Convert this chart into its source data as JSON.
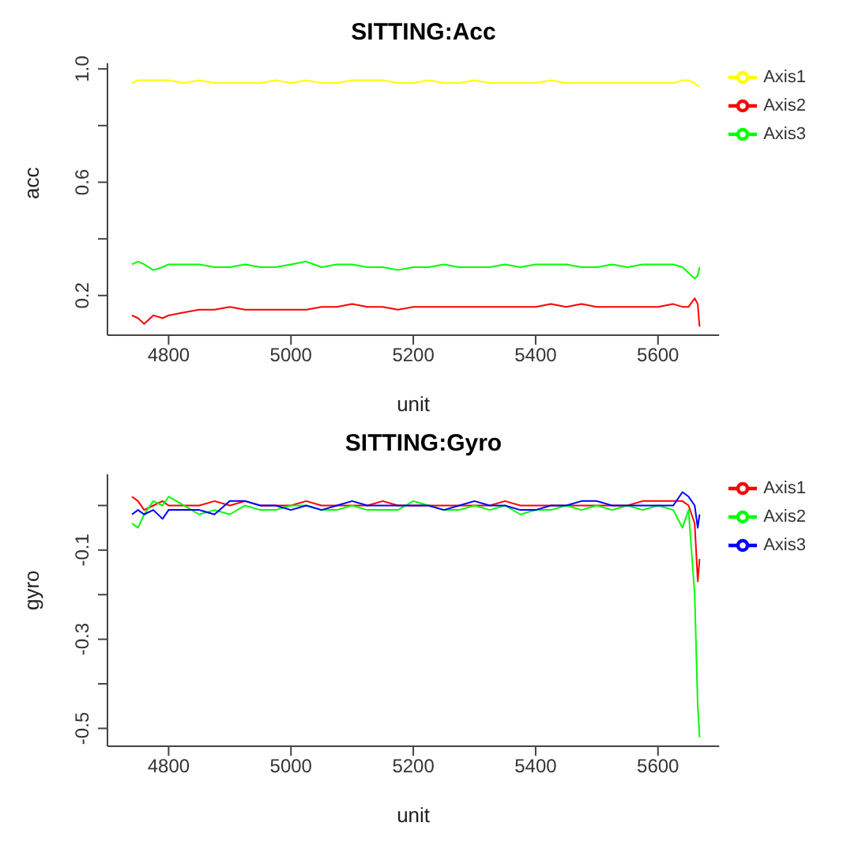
{
  "chart_data": [
    {
      "type": "line",
      "title": "SITTING:Acc",
      "xlabel": "unit",
      "ylabel": "acc",
      "x": [
        4740,
        4750,
        4760,
        4775,
        4790,
        4800,
        4825,
        4850,
        4875,
        4900,
        4925,
        4950,
        4975,
        5000,
        5025,
        5050,
        5075,
        5100,
        5125,
        5150,
        5175,
        5200,
        5225,
        5250,
        5275,
        5300,
        5325,
        5350,
        5375,
        5400,
        5425,
        5450,
        5475,
        5500,
        5525,
        5550,
        5575,
        5600,
        5625,
        5640,
        5650,
        5660,
        5665,
        5668
      ],
      "series": [
        {
          "name": "Axis1",
          "color": "#ffff00",
          "values": [
            0.95,
            0.96,
            0.96,
            0.96,
            0.96,
            0.96,
            0.95,
            0.96,
            0.95,
            0.95,
            0.95,
            0.95,
            0.96,
            0.95,
            0.96,
            0.95,
            0.95,
            0.96,
            0.96,
            0.96,
            0.95,
            0.95,
            0.96,
            0.95,
            0.95,
            0.96,
            0.95,
            0.95,
            0.95,
            0.95,
            0.96,
            0.95,
            0.95,
            0.95,
            0.95,
            0.95,
            0.95,
            0.95,
            0.95,
            0.96,
            0.96,
            0.95,
            0.94,
            0.94
          ]
        },
        {
          "name": "Axis2",
          "color": "#ff0000",
          "values": [
            0.13,
            0.12,
            0.1,
            0.13,
            0.12,
            0.13,
            0.14,
            0.15,
            0.15,
            0.16,
            0.15,
            0.15,
            0.15,
            0.15,
            0.15,
            0.16,
            0.16,
            0.17,
            0.16,
            0.16,
            0.15,
            0.16,
            0.16,
            0.16,
            0.16,
            0.16,
            0.16,
            0.16,
            0.16,
            0.16,
            0.17,
            0.16,
            0.17,
            0.16,
            0.16,
            0.16,
            0.16,
            0.16,
            0.17,
            0.16,
            0.16,
            0.19,
            0.17,
            0.09
          ]
        },
        {
          "name": "Axis3",
          "color": "#00ff00",
          "values": [
            0.31,
            0.32,
            0.31,
            0.29,
            0.3,
            0.31,
            0.31,
            0.31,
            0.3,
            0.3,
            0.31,
            0.3,
            0.3,
            0.31,
            0.32,
            0.3,
            0.31,
            0.31,
            0.3,
            0.3,
            0.29,
            0.3,
            0.3,
            0.31,
            0.3,
            0.3,
            0.3,
            0.31,
            0.3,
            0.31,
            0.31,
            0.31,
            0.3,
            0.3,
            0.31,
            0.3,
            0.31,
            0.31,
            0.31,
            0.3,
            0.28,
            0.26,
            0.27,
            0.3
          ]
        }
      ],
      "xlim": [
        4700,
        5700
      ],
      "xticks": [
        4800,
        5000,
        5200,
        5400,
        5600
      ],
      "ylim": [
        0.06,
        1.02
      ],
      "yticks": [
        0.2,
        {
          "value": 0.4,
          "label": null
        },
        0.6,
        {
          "value": 0.8,
          "label": null
        },
        {
          "value": 1.0,
          "label": "1.0"
        }
      ],
      "legend": "right",
      "marker": "none",
      "line_style": "solid"
    },
    {
      "type": "line",
      "title": "SITTING:Gyro",
      "xlabel": "unit",
      "ylabel": "gyro",
      "x": [
        4740,
        4750,
        4760,
        4775,
        4790,
        4800,
        4825,
        4850,
        4875,
        4900,
        4925,
        4950,
        4975,
        5000,
        5025,
        5050,
        5075,
        5100,
        5125,
        5150,
        5175,
        5200,
        5225,
        5250,
        5275,
        5300,
        5325,
        5350,
        5375,
        5400,
        5425,
        5450,
        5475,
        5500,
        5525,
        5550,
        5575,
        5600,
        5625,
        5640,
        5650,
        5660,
        5665,
        5668
      ],
      "series": [
        {
          "name": "Axis1",
          "color": "#ff0000",
          "values": [
            0.02,
            0.01,
            -0.01,
            0.0,
            0.01,
            0.0,
            0.0,
            0.0,
            0.01,
            0.0,
            0.01,
            0.0,
            0.0,
            0.0,
            0.01,
            0.0,
            0.0,
            0.0,
            0.0,
            0.01,
            0.0,
            0.0,
            0.0,
            0.0,
            0.0,
            0.0,
            0.0,
            0.01,
            0.0,
            0.0,
            0.0,
            0.0,
            0.0,
            0.0,
            0.0,
            0.0,
            0.01,
            0.01,
            0.01,
            0.01,
            0.0,
            -0.04,
            -0.17,
            -0.12
          ]
        },
        {
          "name": "Axis2",
          "color": "#00ff00",
          "values": [
            -0.04,
            -0.05,
            -0.02,
            0.01,
            0.0,
            0.02,
            0.0,
            -0.02,
            -0.01,
            -0.02,
            0.0,
            -0.01,
            -0.01,
            0.0,
            0.0,
            -0.01,
            -0.01,
            0.0,
            -0.01,
            -0.01,
            -0.01,
            0.01,
            0.0,
            -0.01,
            -0.01,
            0.0,
            -0.01,
            0.0,
            -0.02,
            -0.01,
            -0.01,
            0.0,
            -0.01,
            0.0,
            -0.01,
            0.0,
            -0.01,
            0.0,
            -0.01,
            -0.05,
            -0.01,
            -0.2,
            -0.45,
            -0.52
          ]
        },
        {
          "name": "Axis3",
          "color": "#0000ff",
          "values": [
            -0.02,
            -0.01,
            -0.02,
            -0.01,
            -0.03,
            -0.01,
            -0.01,
            -0.01,
            -0.02,
            0.01,
            0.01,
            0.0,
            0.0,
            -0.01,
            0.0,
            -0.01,
            0.0,
            0.01,
            0.0,
            0.0,
            0.0,
            0.0,
            0.0,
            -0.01,
            0.0,
            0.01,
            0.0,
            0.0,
            -0.01,
            -0.01,
            0.0,
            0.0,
            0.01,
            0.01,
            0.0,
            0.0,
            0.0,
            0.0,
            0.0,
            0.03,
            0.02,
            0.0,
            -0.05,
            -0.02
          ]
        }
      ],
      "xlim": [
        4700,
        5700
      ],
      "xticks": [
        4800,
        5000,
        5200,
        5400,
        5600
      ],
      "ylim": [
        -0.54,
        0.07
      ],
      "yticks": [
        {
          "value": 0.0,
          "label": null
        },
        -0.1,
        {
          "value": -0.2,
          "label": null
        },
        -0.3,
        {
          "value": -0.4,
          "label": null
        },
        -0.5
      ],
      "legend": "right",
      "marker": "none",
      "line_style": "solid"
    }
  ]
}
